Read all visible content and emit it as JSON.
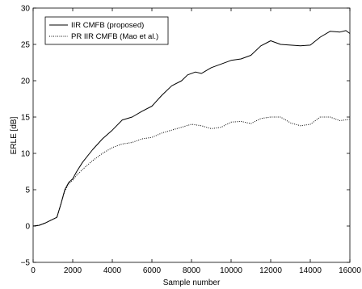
{
  "chart_data": {
    "type": "line",
    "title": "",
    "xlabel": "Sample number",
    "ylabel": "ERLE [dB]",
    "xlim": [
      0,
      16000
    ],
    "ylim": [
      -5,
      30
    ],
    "xticks": [
      0,
      2000,
      4000,
      6000,
      8000,
      10000,
      12000,
      14000,
      16000
    ],
    "yticks": [
      -5,
      0,
      5,
      10,
      15,
      20,
      25,
      30
    ],
    "grid": false,
    "legend_position": "top-left",
    "series": [
      {
        "name": "IIR CMFB (proposed)",
        "style": "solid",
        "color": "#000000",
        "x": [
          0,
          300,
          600,
          900,
          1200,
          1400,
          1600,
          1800,
          2000,
          2200,
          2500,
          3000,
          3500,
          4000,
          4500,
          5000,
          5500,
          6000,
          6500,
          7000,
          7500,
          7800,
          8200,
          8500,
          9000,
          9500,
          10000,
          10500,
          11000,
          11500,
          12000,
          12500,
          13000,
          13500,
          14000,
          14500,
          15000,
          15500,
          15800,
          16000
        ],
        "y": [
          0,
          0.1,
          0.4,
          0.8,
          1.2,
          3.0,
          5.0,
          6.0,
          6.5,
          7.5,
          8.8,
          10.5,
          12.0,
          13.2,
          14.6,
          15.0,
          15.8,
          16.5,
          18.0,
          19.3,
          20.0,
          20.8,
          21.2,
          21.0,
          21.8,
          22.3,
          22.8,
          23.0,
          23.5,
          24.8,
          25.5,
          25.0,
          24.9,
          24.8,
          24.9,
          26.0,
          26.8,
          26.7,
          26.9,
          26.5
        ]
      },
      {
        "name": "PR IIR CMFB (Mao et al.)",
        "style": "dotted",
        "color": "#000000",
        "x": [
          0,
          300,
          600,
          900,
          1200,
          1400,
          1600,
          1800,
          2000,
          2200,
          2500,
          3000,
          3500,
          4000,
          4500,
          5000,
          5500,
          6000,
          6500,
          7000,
          7500,
          8000,
          8500,
          9000,
          9500,
          10000,
          10500,
          11000,
          11500,
          12000,
          12500,
          13000,
          13500,
          14000,
          14500,
          15000,
          15500,
          16000
        ],
        "y": [
          0,
          0.1,
          0.4,
          0.8,
          1.2,
          3.0,
          4.8,
          5.8,
          6.3,
          7.0,
          7.8,
          9.0,
          10.0,
          10.8,
          11.3,
          11.5,
          12.0,
          12.2,
          12.8,
          13.2,
          13.6,
          14.0,
          13.8,
          13.4,
          13.6,
          14.3,
          14.4,
          14.1,
          14.8,
          15.0,
          15.0,
          14.2,
          13.8,
          14.0,
          15.0,
          15.0,
          14.5,
          14.7
        ]
      }
    ]
  }
}
